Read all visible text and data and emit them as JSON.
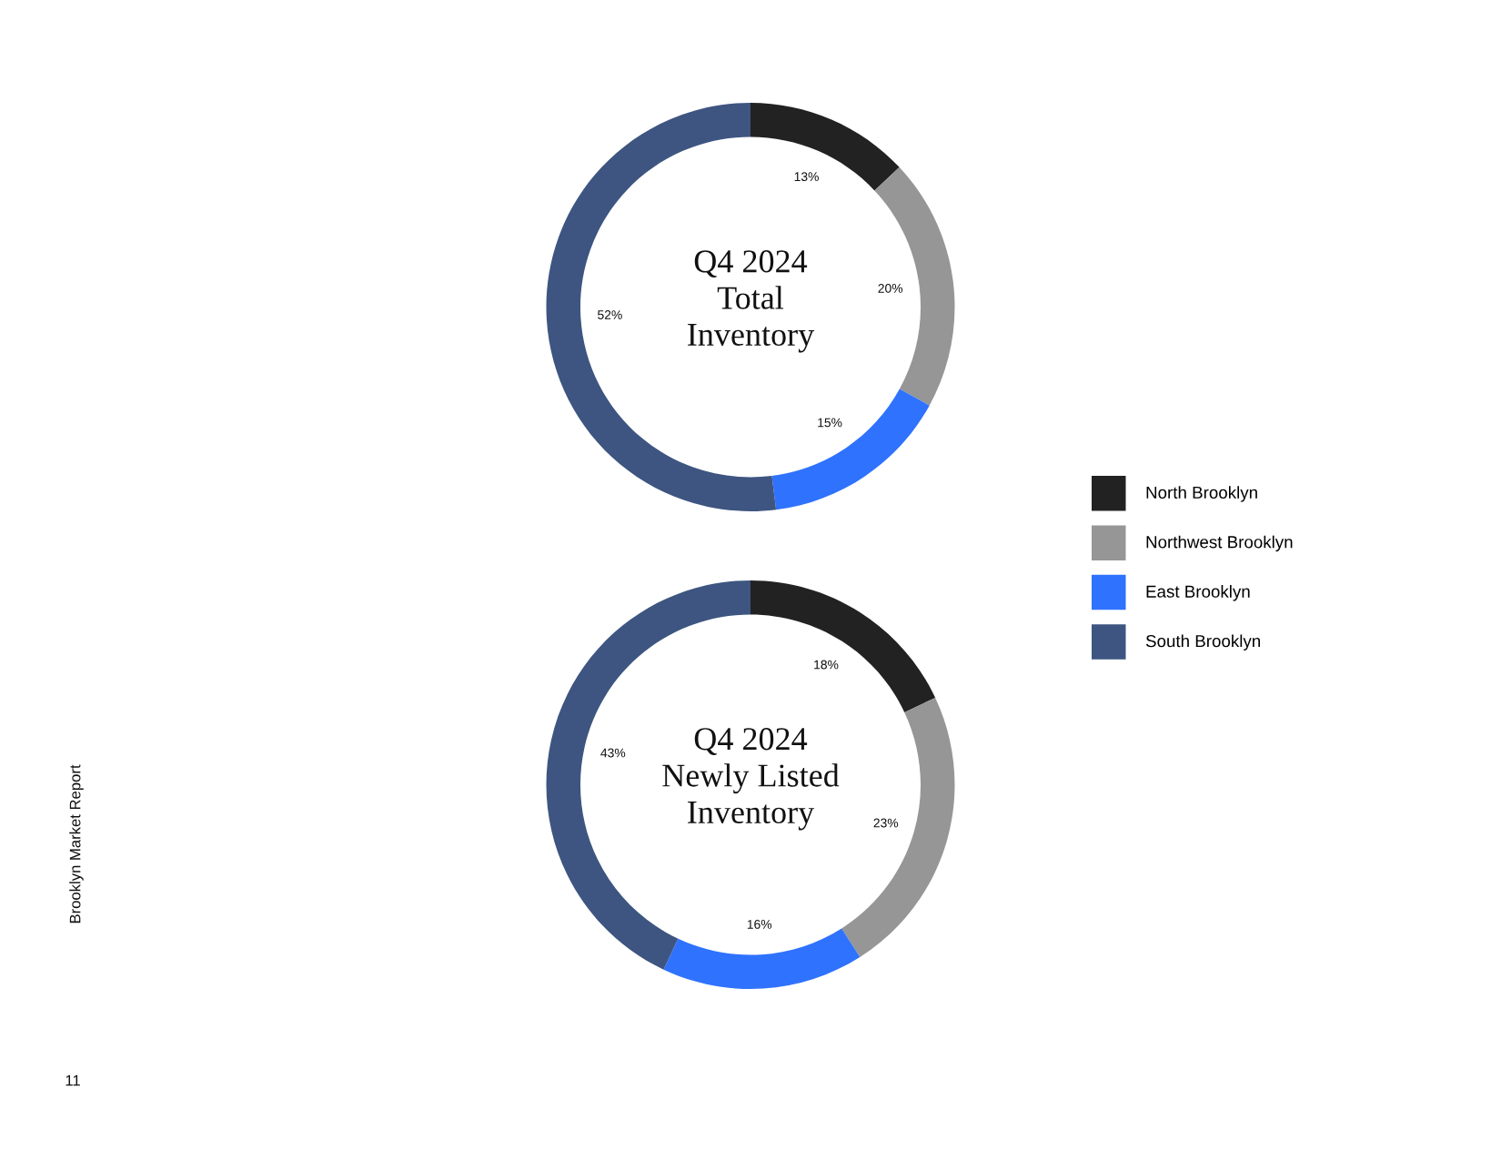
{
  "chart_data": [
    {
      "type": "donut",
      "title": "Q4 2024\nTotal\nInventory",
      "categories": [
        "North Brooklyn",
        "Northwest Brooklyn",
        "East Brooklyn",
        "South Brooklyn"
      ],
      "values": [
        13,
        20,
        15,
        52
      ],
      "colors": [
        "#222222",
        "#969696",
        "#2f72fd",
        "#3d5580"
      ],
      "value_labels": [
        "13%",
        "20%",
        "15%",
        "52%"
      ],
      "legend": "right"
    },
    {
      "type": "donut",
      "title": "Q4 2024\nNewly Listed\nInventory",
      "categories": [
        null,
        null,
        null,
        null
      ],
      "values": [
        18,
        23,
        16,
        43
      ],
      "colors": [
        "#222222",
        "#969696",
        "#2f72fd",
        "#3d5580"
      ],
      "value_labels": [
        "18%",
        "23%",
        "16%",
        "43%"
      ],
      "annotations": [
        "Brooklyn Market Report",
        "11"
      ]
    }
  ]
}
